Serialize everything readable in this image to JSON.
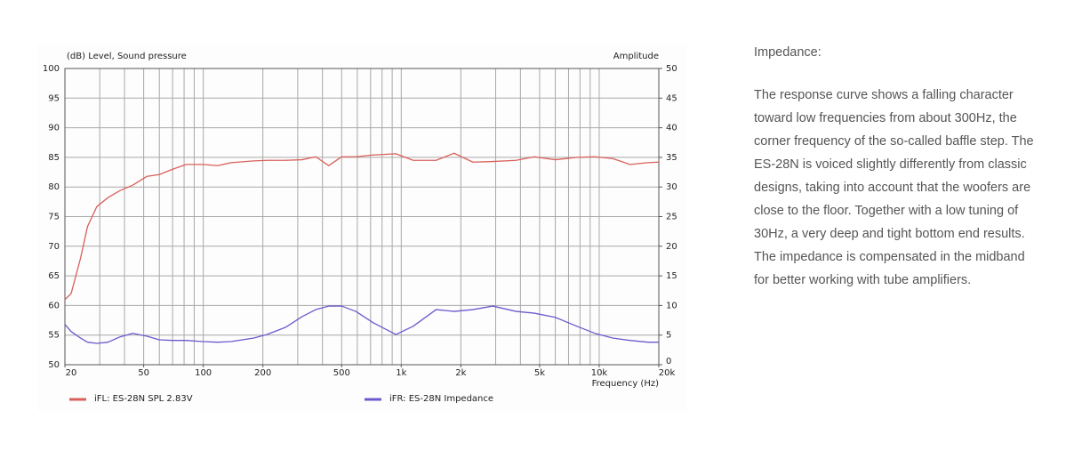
{
  "chart_data": {
    "type": "line",
    "title": "(dB) Level, Sound pressure",
    "y2_label": "Amplitude",
    "x_label": "Frequency (Hz)",
    "log_x": true,
    "grid": true,
    "x": [
      20,
      21.5,
      24,
      26,
      29,
      33,
      38,
      44,
      52,
      60,
      70,
      82,
      100,
      118,
      138,
      180,
      210,
      260,
      315,
      370,
      430,
      500,
      590,
      720,
      940,
      1150,
      1500,
      1850,
      2300,
      2900,
      3800,
      4700,
      6000,
      7700,
      9500,
      11700,
      14300,
      17600,
      20000
    ],
    "series": [
      {
        "name": "iFL: ES-28N SPL 2.83V",
        "color": "#d9605a",
        "axis": "y",
        "values": [
          61.0,
          62.0,
          68.0,
          73.3,
          76.7,
          78.2,
          79.4,
          80.3,
          81.8,
          82.1,
          83.0,
          83.8,
          83.8,
          83.6,
          84.1,
          84.4,
          84.5,
          84.5,
          84.6,
          85.1,
          83.6,
          85.1,
          85.1,
          85.4,
          85.6,
          84.5,
          84.5,
          85.7,
          84.2,
          84.3,
          84.5,
          85.1,
          84.6,
          85.0,
          85.1,
          84.8,
          83.8,
          84.1,
          84.2
        ]
      },
      {
        "name": "iFR: ES-28N Impedance",
        "color": "#6a5acd",
        "axis": "y2",
        "values": [
          6.8,
          5.6,
          4.5,
          3.8,
          3.6,
          3.8,
          4.7,
          5.3,
          4.8,
          4.2,
          4.1,
          4.1,
          3.9,
          3.8,
          3.9,
          4.5,
          5.1,
          6.3,
          8.1,
          9.3,
          9.9,
          9.9,
          9.0,
          7.1,
          5.1,
          6.5,
          9.3,
          9.0,
          9.3,
          9.9,
          9.0,
          8.7,
          8.0,
          6.5,
          5.3,
          4.5,
          4.1,
          3.8,
          3.8
        ]
      }
    ],
    "xlim": [
      20,
      20000
    ],
    "xticks": [
      20,
      50,
      100,
      200,
      500,
      {
        "value": 1000,
        "label": "1k"
      },
      {
        "value": 2000,
        "label": "2k"
      },
      {
        "value": 5000,
        "label": "5k"
      },
      {
        "value": 10000,
        "label": "10k"
      },
      {
        "value": 20000,
        "label": "20k"
      }
    ],
    "xgrid": [
      20,
      30,
      40,
      50,
      60,
      70,
      80,
      90,
      100,
      200,
      300,
      400,
      500,
      600,
      700,
      800,
      900,
      1000,
      2000,
      3000,
      4000,
      5000,
      6000,
      7000,
      8000,
      9000,
      10000,
      20000
    ],
    "ylim": [
      50,
      100
    ],
    "yticks": [
      50,
      55,
      60,
      65,
      70,
      75,
      80,
      85,
      90,
      95,
      100
    ],
    "y2lim": [
      0,
      50
    ],
    "y2ticks": [
      0,
      5,
      10,
      15,
      20,
      25,
      30,
      35,
      40,
      45,
      50
    ]
  },
  "article": {
    "heading": "Impedance:",
    "lines": [
      "The response curve shows a falling character",
      "toward low frequencies from about 300Hz, the",
      "corner frequency of the so-called baffle step. The",
      "ES-28N is voiced slightly differently from classic",
      "designs, taking into account that the woofers are",
      "close to the floor. Together with a low tuning of",
      "30Hz, a very deep and tight bottom end results.",
      "The impedance is compensated in the midband",
      "for better working with tube amplifiers."
    ]
  }
}
